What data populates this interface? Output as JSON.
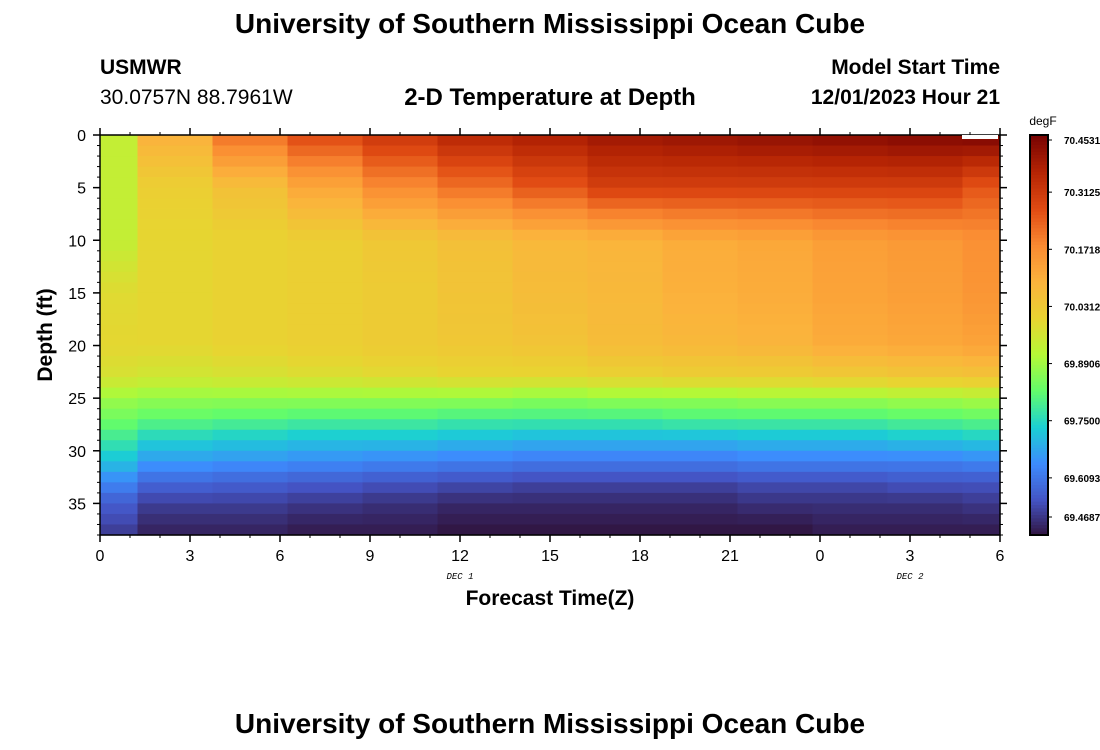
{
  "header": {
    "title": "University of Southern Mississippi Ocean Cube",
    "station": "USMWR",
    "coords": "30.0757N  88.7961W",
    "subtitle": "2-D Temperature at Depth",
    "model_start_label": "Model Start Time",
    "model_start_value": "12/01/2023 Hour 21"
  },
  "footer": {
    "title": "University of Southern Mississippi Ocean Cube"
  },
  "chart_data": {
    "type": "heatmap",
    "xlabel": "Forecast Time(Z)",
    "ylabel": "Depth (ft)",
    "x_ticks": [
      "0",
      "3",
      "6",
      "9",
      "12",
      "15",
      "18",
      "21",
      "0",
      "3",
      "6"
    ],
    "x_tick_hours": [
      0,
      3,
      6,
      9,
      12,
      15,
      18,
      21,
      24,
      27,
      30
    ],
    "x_range": [
      0,
      30
    ],
    "date_labels": [
      {
        "label": "DEC 1",
        "hour": 12
      },
      {
        "label": "DEC 2",
        "hour": 27
      }
    ],
    "y_ticks": [
      0,
      5,
      10,
      15,
      20,
      25,
      30,
      35
    ],
    "y_range": [
      0,
      38
    ],
    "y_inverted": true,
    "colorbar": {
      "unit": "degF",
      "labels": [
        "70.4531",
        "70.3125",
        "70.1718",
        "70.0312",
        "69.8906",
        "69.7500",
        "69.6093",
        "69.4687"
      ],
      "min": 69.4687,
      "max": 70.4531,
      "colors": [
        "#30123b",
        "#4454c4",
        "#3d8bfd",
        "#1bcfd4",
        "#62fc6b",
        "#b5f836",
        "#e8d431",
        "#fbb33c",
        "#fa8a32",
        "#e04b13",
        "#b62504",
        "#7a0403"
      ]
    },
    "time_hours": [
      0,
      2.5,
      5,
      7.5,
      10,
      12.5,
      15,
      17.5,
      20,
      22.5,
      25,
      27.5,
      30
    ],
    "depth_levels": [
      0,
      5,
      10,
      15,
      20,
      23,
      25,
      27,
      29,
      31,
      33,
      35,
      37,
      38
    ],
    "temperature_degF": [
      [
        69.94,
        69.94,
        69.94,
        69.99,
        70.0,
        69.97,
        69.89,
        69.84,
        69.78,
        69.72,
        69.64,
        69.57,
        69.54,
        69.52
      ],
      [
        70.1,
        70.02,
        70.0,
        70.0,
        70.0,
        69.96,
        69.88,
        69.82,
        69.74,
        69.67,
        69.59,
        69.53,
        69.5,
        69.49
      ],
      [
        70.22,
        70.06,
        70.01,
        70.01,
        70.01,
        69.97,
        69.88,
        69.81,
        69.73,
        69.66,
        69.58,
        69.53,
        69.5,
        69.49
      ],
      [
        70.28,
        70.12,
        70.02,
        70.02,
        70.02,
        69.98,
        69.88,
        69.8,
        69.72,
        69.65,
        69.57,
        69.52,
        69.49,
        69.48
      ],
      [
        70.32,
        70.18,
        70.04,
        70.03,
        70.03,
        69.99,
        69.88,
        69.8,
        69.72,
        69.64,
        69.56,
        69.51,
        69.49,
        69.48
      ],
      [
        70.36,
        70.22,
        70.06,
        70.05,
        70.04,
        70.0,
        69.88,
        69.79,
        69.71,
        69.63,
        69.55,
        69.5,
        69.48,
        69.47
      ],
      [
        70.38,
        70.26,
        70.08,
        70.07,
        70.05,
        70.0,
        69.87,
        69.79,
        69.7,
        69.62,
        69.54,
        69.5,
        69.48,
        69.47
      ],
      [
        70.4,
        70.3,
        70.09,
        70.08,
        70.07,
        70.01,
        69.88,
        69.79,
        69.7,
        69.62,
        69.54,
        69.5,
        69.48,
        69.47
      ],
      [
        70.41,
        70.3,
        70.11,
        70.1,
        70.08,
        70.02,
        69.88,
        69.8,
        69.7,
        69.62,
        69.54,
        69.5,
        69.48,
        69.47
      ],
      [
        70.42,
        70.3,
        70.12,
        70.11,
        70.09,
        70.02,
        69.89,
        69.8,
        69.71,
        69.63,
        69.55,
        69.51,
        69.48,
        69.47
      ],
      [
        70.43,
        70.3,
        70.14,
        70.13,
        70.11,
        70.03,
        69.89,
        69.8,
        69.71,
        69.63,
        69.55,
        69.51,
        69.49,
        69.48
      ],
      [
        70.44,
        70.3,
        70.15,
        70.14,
        70.12,
        70.04,
        69.9,
        69.81,
        69.72,
        69.63,
        69.56,
        69.51,
        69.49,
        69.48
      ],
      [
        70.45,
        70.26,
        70.17,
        70.16,
        70.13,
        70.05,
        69.91,
        69.82,
        69.73,
        69.64,
        69.56,
        69.52,
        69.49,
        69.48
      ]
    ]
  }
}
